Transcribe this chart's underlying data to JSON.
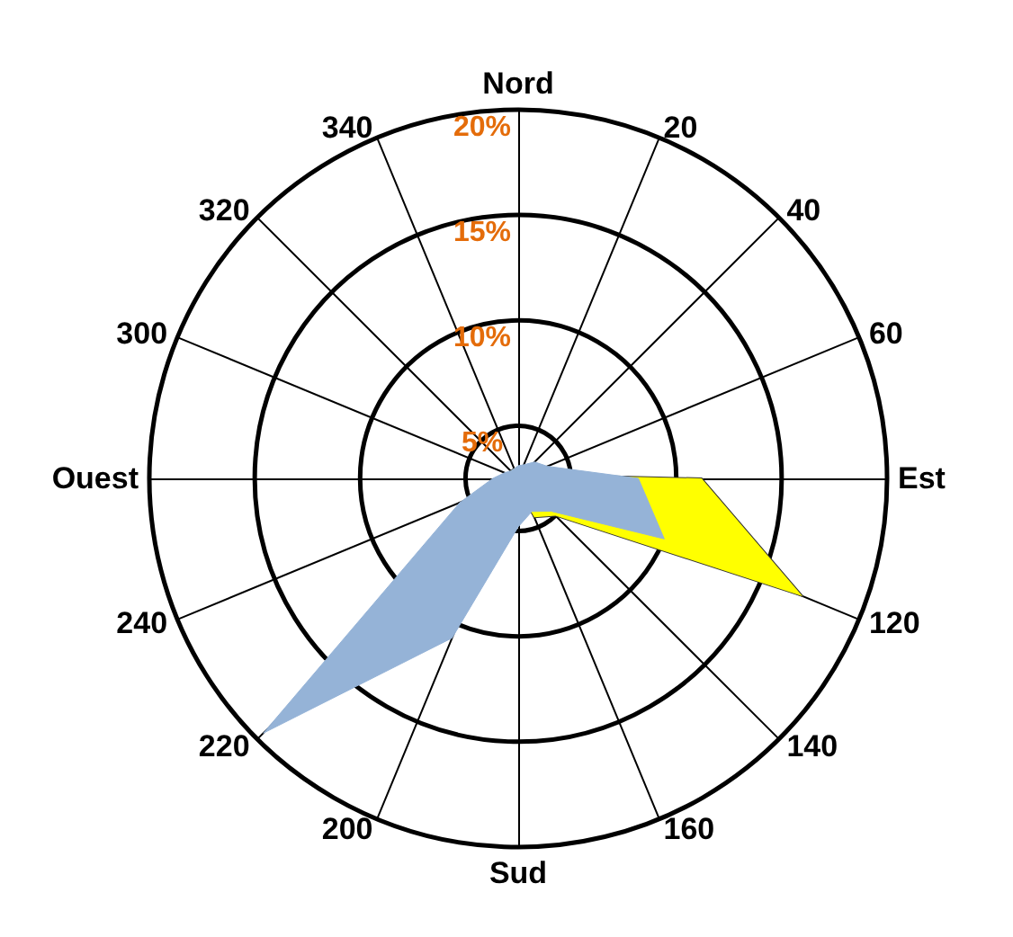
{
  "chart_data": {
    "type": "radar",
    "categories": [
      "Nord",
      "20",
      "40",
      "60",
      "Est",
      "120",
      "140",
      "160",
      "Sud",
      "200",
      "220",
      "240",
      "Ouest",
      "300",
      "320",
      "340"
    ],
    "series": [
      {
        "color": "#ffff00",
        "values": [
          3,
          3,
          3,
          3,
          11.2,
          17.1,
          5,
          4.5,
          3,
          3,
          3,
          3,
          3,
          3,
          3,
          3
        ]
      },
      {
        "color": "#95b3d7",
        "values": [
          3.1,
          3.2,
          3.6,
          4,
          8.2,
          10,
          4.7,
          4.2,
          4.8,
          10.7,
          19.6,
          5.5,
          3.7,
          3.2,
          3,
          3
        ]
      }
    ],
    "ylim": [
      2.5,
      20
    ],
    "yticks": [
      {
        "value": 5,
        "label": "5%"
      },
      {
        "value": 10,
        "label": "10%"
      },
      {
        "value": 15,
        "label": "15%"
      },
      {
        "value": 20,
        "label": "20%"
      }
    ]
  }
}
